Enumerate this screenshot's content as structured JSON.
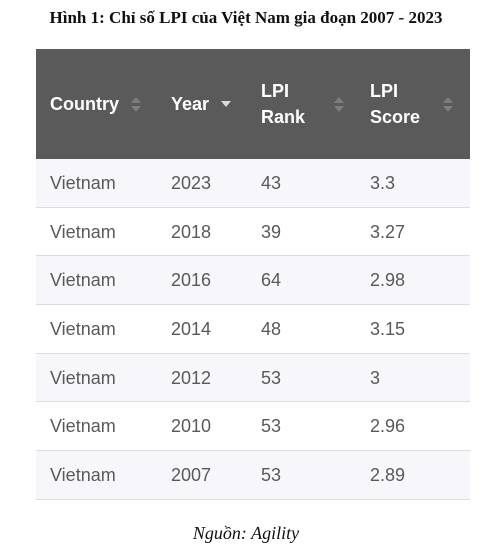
{
  "caption": "Hình 1: Chỉ số LPI của Việt Nam gia đoạn 2007 - 2023",
  "table": {
    "headers": [
      {
        "line1": "Country",
        "line2": "",
        "sort": "none"
      },
      {
        "line1": "Year",
        "line2": "",
        "sort": "descending"
      },
      {
        "line1": "LPI",
        "line2": "Rank",
        "sort": "none"
      },
      {
        "line1": "LPI",
        "line2": "Score",
        "sort": "none"
      }
    ],
    "rows": [
      [
        "Vietnam",
        "2023",
        "43",
        "3.3"
      ],
      [
        "Vietnam",
        "2018",
        "39",
        "3.27"
      ],
      [
        "Vietnam",
        "2016",
        "64",
        "2.98"
      ],
      [
        "Vietnam",
        "2014",
        "48",
        "3.15"
      ],
      [
        "Vietnam",
        "2012",
        "53",
        "3"
      ],
      [
        "Vietnam",
        "2010",
        "53",
        "2.96"
      ],
      [
        "Vietnam",
        "2007",
        "53",
        "2.89"
      ]
    ]
  },
  "source": "Nguồn: Agility",
  "colors": {
    "header_bg": "#5a5a5a",
    "header_text": "#ffffff",
    "row_alt_bg": "#f7f7fb",
    "cell_text": "#595959"
  }
}
